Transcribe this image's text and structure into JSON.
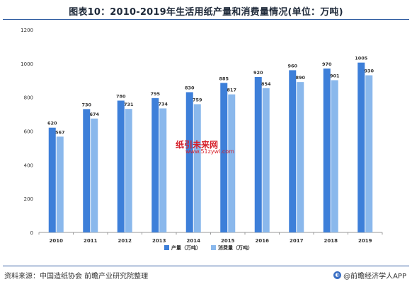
{
  "title": "图表10：2010-2019年生活用纸产量和消费量情况(单位：万吨)",
  "source": "资料来源：中国造纸协会 前瞻产业研究院整理",
  "brand": "@前瞻经济学人APP",
  "watermark_main": "纸引未来网",
  "watermark_url": "www.51zywl.com",
  "colors": {
    "production": "#3d7fd9",
    "consumption": "#8ab8ec",
    "axis": "#999999",
    "text": "#333333"
  },
  "chart_data": {
    "type": "bar",
    "categories": [
      "2010",
      "2011",
      "2012",
      "2013",
      "2014",
      "2015",
      "2016",
      "2017",
      "2018",
      "2019"
    ],
    "series": [
      {
        "name": "产量（万吨）",
        "values": [
          620,
          730,
          780,
          795,
          830,
          885,
          920,
          960,
          970,
          1005
        ]
      },
      {
        "name": "消费量（万吨）",
        "values": [
          567,
          674,
          731,
          734,
          759,
          817,
          854,
          890,
          901,
          930
        ]
      }
    ],
    "yticks": [
      0,
      200,
      400,
      600,
      800,
      1000,
      1200
    ],
    "ylim": [
      0,
      1200
    ],
    "grid": false,
    "legend": "bottom-center"
  }
}
